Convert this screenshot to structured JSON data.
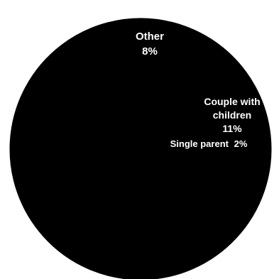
{
  "chart_data": {
    "type": "pie",
    "slices": [
      {
        "label": "Other",
        "value_label": "8%",
        "value": 8
      },
      {
        "label": "Couple with children",
        "label_lines": [
          "Couple with",
          "children"
        ],
        "value_label": "11%",
        "value": 11
      },
      {
        "label": "Single parent",
        "value_label": "2%",
        "value": 2
      },
      {
        "label": "",
        "value_label": "",
        "value": 79
      }
    ],
    "colors": {
      "slice": "#000000",
      "background": "#ffffff",
      "label": "#ffffff"
    }
  }
}
